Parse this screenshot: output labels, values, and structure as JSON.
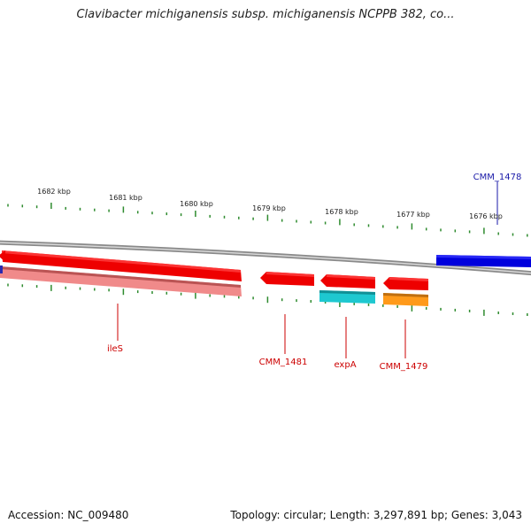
{
  "title": "Clavibacter michiganensis subsp. michiganensis NCPPB 382, co...",
  "footer": {
    "accession": "Accession: NC_009480",
    "summary": "Topology: circular; Length: 3,297,891 bp; Genes: 3,043"
  },
  "ticks": [
    {
      "label": "1682 kbp"
    },
    {
      "label": "1681 kbp"
    },
    {
      "label": "1680 kbp"
    },
    {
      "label": "1679 kbp"
    },
    {
      "label": "1678 kbp"
    },
    {
      "label": "1677 kbp"
    },
    {
      "label": "1676 kbp"
    }
  ],
  "genes": [
    {
      "name": "CMM_1478",
      "color": "#0000dd",
      "strand": "forward",
      "label_color": "#1a1aa8"
    },
    {
      "name": "ileS",
      "color": "#ee0000",
      "strand": "reverse",
      "label_color": "#cc0000"
    },
    {
      "name": "CMM_1481",
      "color": "#ee0000",
      "strand": "reverse",
      "label_color": "#cc0000"
    },
    {
      "name": "expA",
      "color": "#ee0000",
      "strand": "reverse",
      "label_color": "#cc0000"
    },
    {
      "name": "CMM_1479",
      "color": "#ee0000",
      "strand": "reverse",
      "label_color": "#cc0000"
    }
  ],
  "features": [
    {
      "name": "ileS-feature",
      "color": "#f08a8a"
    },
    {
      "name": "expA-feature",
      "color": "#1ec8d0"
    },
    {
      "name": "CMM_1479-feature",
      "color": "#ff9a1a"
    }
  ],
  "colors": {
    "backbone": "#8a8a8a",
    "tick": "#2e8b2e"
  }
}
